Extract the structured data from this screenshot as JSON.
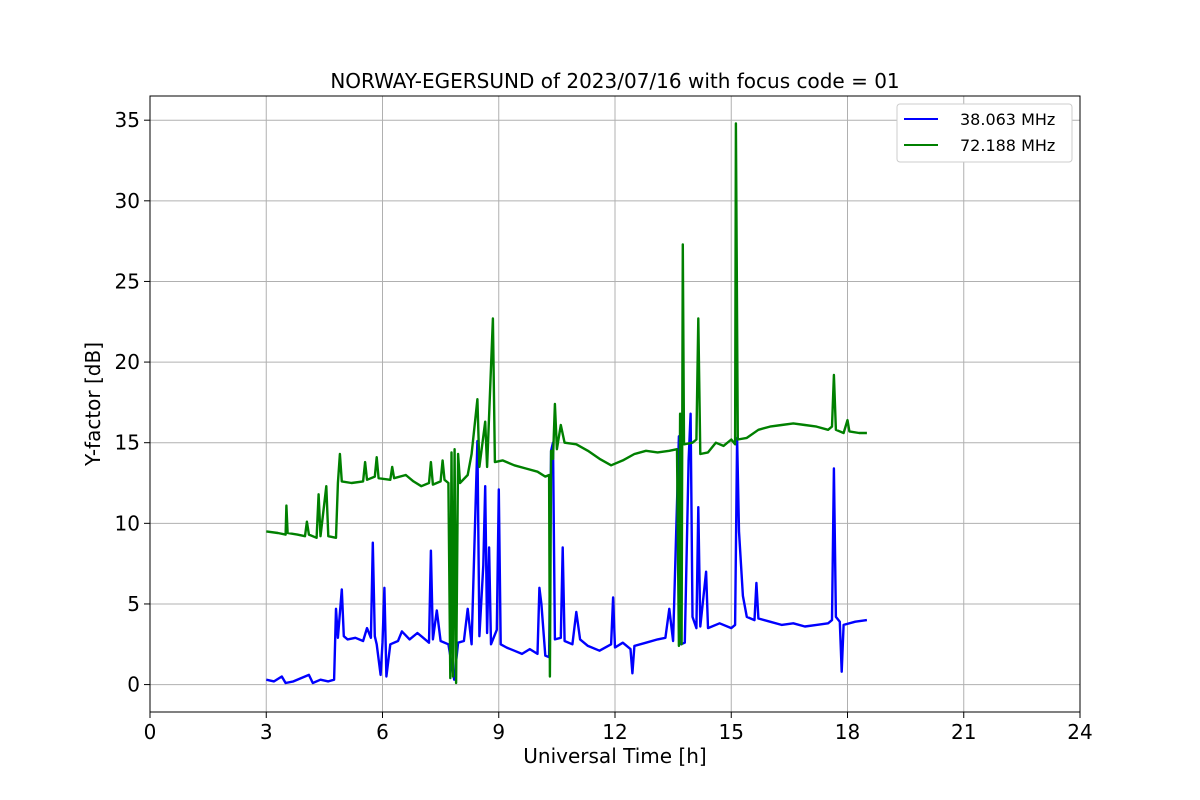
{
  "chart_data": {
    "type": "line",
    "title": "NORWAY-EGERSUND of 2023/07/16 with focus code = 01",
    "xlabel": "Universal Time [h]",
    "ylabel": "Y-factor [dB]",
    "xlim": [
      0,
      24
    ],
    "ylim": [
      -1.7,
      36.5
    ],
    "xticks": [
      0,
      3,
      6,
      9,
      12,
      15,
      18,
      21,
      24
    ],
    "yticks": [
      0,
      5,
      10,
      15,
      20,
      25,
      30,
      35
    ],
    "grid": true,
    "legend_position": "top-right",
    "series": [
      {
        "name": "38.063 MHz",
        "color": "#0000ff",
        "points": [
          [
            3.0,
            0.3
          ],
          [
            3.2,
            0.2
          ],
          [
            3.4,
            0.5
          ],
          [
            3.5,
            0.1
          ],
          [
            3.7,
            0.2
          ],
          [
            3.9,
            0.4
          ],
          [
            4.1,
            0.6
          ],
          [
            4.2,
            0.1
          ],
          [
            4.4,
            0.3
          ],
          [
            4.6,
            0.2
          ],
          [
            4.75,
            0.3
          ],
          [
            4.8,
            4.7
          ],
          [
            4.85,
            2.9
          ],
          [
            4.95,
            5.9
          ],
          [
            5.0,
            3.0
          ],
          [
            5.1,
            2.8
          ],
          [
            5.3,
            2.9
          ],
          [
            5.5,
            2.7
          ],
          [
            5.6,
            3.5
          ],
          [
            5.7,
            2.9
          ],
          [
            5.75,
            8.8
          ],
          [
            5.8,
            3.0
          ],
          [
            5.85,
            2.5
          ],
          [
            5.95,
            0.6
          ],
          [
            6.0,
            2.6
          ],
          [
            6.05,
            6.0
          ],
          [
            6.1,
            0.5
          ],
          [
            6.2,
            2.5
          ],
          [
            6.4,
            2.7
          ],
          [
            6.5,
            3.3
          ],
          [
            6.7,
            2.8
          ],
          [
            6.9,
            3.2
          ],
          [
            7.0,
            3.0
          ],
          [
            7.2,
            2.6
          ],
          [
            7.25,
            8.3
          ],
          [
            7.3,
            2.8
          ],
          [
            7.4,
            4.6
          ],
          [
            7.5,
            2.7
          ],
          [
            7.7,
            2.5
          ],
          [
            7.85,
            0.3
          ],
          [
            7.95,
            2.6
          ],
          [
            8.1,
            2.7
          ],
          [
            8.2,
            4.7
          ],
          [
            8.3,
            2.5
          ],
          [
            8.45,
            15.1
          ],
          [
            8.5,
            3.0
          ],
          [
            8.6,
            7.4
          ],
          [
            8.65,
            12.3
          ],
          [
            8.7,
            3.2
          ],
          [
            8.75,
            8.5
          ],
          [
            8.8,
            2.5
          ],
          [
            8.95,
            3.4
          ],
          [
            9.0,
            12.1
          ],
          [
            9.05,
            2.5
          ],
          [
            9.2,
            2.3
          ],
          [
            9.4,
            2.1
          ],
          [
            9.6,
            1.9
          ],
          [
            9.8,
            2.2
          ],
          [
            10.0,
            1.9
          ],
          [
            10.05,
            6.0
          ],
          [
            10.1,
            5.0
          ],
          [
            10.2,
            1.8
          ],
          [
            10.3,
            1.7
          ],
          [
            10.35,
            14.5
          ],
          [
            10.4,
            15.0
          ],
          [
            10.45,
            2.8
          ],
          [
            10.6,
            2.9
          ],
          [
            10.65,
            8.5
          ],
          [
            10.7,
            2.7
          ],
          [
            10.9,
            2.5
          ],
          [
            11.0,
            4.5
          ],
          [
            11.1,
            2.8
          ],
          [
            11.3,
            2.4
          ],
          [
            11.6,
            2.1
          ],
          [
            11.9,
            2.5
          ],
          [
            11.95,
            5.4
          ],
          [
            12.0,
            2.3
          ],
          [
            12.2,
            2.6
          ],
          [
            12.4,
            2.2
          ],
          [
            12.45,
            0.7
          ],
          [
            12.5,
            2.4
          ],
          [
            12.8,
            2.6
          ],
          [
            13.1,
            2.8
          ],
          [
            13.3,
            2.9
          ],
          [
            13.4,
            4.7
          ],
          [
            13.5,
            2.7
          ],
          [
            13.65,
            15.4
          ],
          [
            13.7,
            2.5
          ],
          [
            13.8,
            2.6
          ],
          [
            13.9,
            13.9
          ],
          [
            13.95,
            16.8
          ],
          [
            14.0,
            4.2
          ],
          [
            14.1,
            3.5
          ],
          [
            14.15,
            11.0
          ],
          [
            14.2,
            3.6
          ],
          [
            14.35,
            7.0
          ],
          [
            14.4,
            3.5
          ],
          [
            14.7,
            3.8
          ],
          [
            15.0,
            3.5
          ],
          [
            15.1,
            3.7
          ],
          [
            15.15,
            15.3
          ],
          [
            15.2,
            9.5
          ],
          [
            15.3,
            5.5
          ],
          [
            15.4,
            4.2
          ],
          [
            15.6,
            4.0
          ],
          [
            15.65,
            6.3
          ],
          [
            15.7,
            4.1
          ],
          [
            16.0,
            3.9
          ],
          [
            16.3,
            3.7
          ],
          [
            16.6,
            3.8
          ],
          [
            16.9,
            3.6
          ],
          [
            17.2,
            3.7
          ],
          [
            17.5,
            3.8
          ],
          [
            17.6,
            4.0
          ],
          [
            17.65,
            13.4
          ],
          [
            17.7,
            4.2
          ],
          [
            17.8,
            3.9
          ],
          [
            17.85,
            0.8
          ],
          [
            17.9,
            3.7
          ],
          [
            18.2,
            3.9
          ],
          [
            18.5,
            4.0
          ]
        ]
      },
      {
        "name": "72.188 MHz",
        "color": "#008000",
        "points": [
          [
            3.0,
            9.5
          ],
          [
            3.3,
            9.4
          ],
          [
            3.5,
            9.3
          ],
          [
            3.52,
            11.1
          ],
          [
            3.55,
            9.4
          ],
          [
            3.8,
            9.3
          ],
          [
            4.0,
            9.2
          ],
          [
            4.05,
            10.1
          ],
          [
            4.1,
            9.3
          ],
          [
            4.3,
            9.1
          ],
          [
            4.35,
            11.8
          ],
          [
            4.4,
            9.2
          ],
          [
            4.55,
            12.3
          ],
          [
            4.6,
            9.2
          ],
          [
            4.8,
            9.1
          ],
          [
            4.85,
            12.5
          ],
          [
            4.9,
            14.3
          ],
          [
            4.95,
            12.6
          ],
          [
            5.2,
            12.5
          ],
          [
            5.5,
            12.6
          ],
          [
            5.55,
            13.8
          ],
          [
            5.6,
            12.7
          ],
          [
            5.8,
            12.9
          ],
          [
            5.85,
            14.1
          ],
          [
            5.9,
            12.8
          ],
          [
            6.2,
            12.7
          ],
          [
            6.25,
            13.5
          ],
          [
            6.3,
            12.8
          ],
          [
            6.6,
            13.0
          ],
          [
            6.8,
            12.6
          ],
          [
            7.0,
            12.3
          ],
          [
            7.2,
            12.5
          ],
          [
            7.25,
            13.8
          ],
          [
            7.3,
            12.4
          ],
          [
            7.5,
            12.6
          ],
          [
            7.55,
            13.9
          ],
          [
            7.6,
            12.7
          ],
          [
            7.7,
            12.5
          ],
          [
            7.75,
            0.4
          ],
          [
            7.78,
            14.4
          ],
          [
            7.82,
            0.5
          ],
          [
            7.86,
            14.6
          ],
          [
            7.9,
            0.1
          ],
          [
            7.95,
            14.3
          ],
          [
            8.0,
            12.5
          ],
          [
            8.2,
            13.0
          ],
          [
            8.3,
            14.3
          ],
          [
            8.45,
            17.7
          ],
          [
            8.5,
            13.5
          ],
          [
            8.65,
            16.3
          ],
          [
            8.7,
            13.5
          ],
          [
            8.85,
            22.7
          ],
          [
            8.9,
            13.8
          ],
          [
            9.1,
            13.9
          ],
          [
            9.4,
            13.6
          ],
          [
            9.7,
            13.4
          ],
          [
            10.0,
            13.2
          ],
          [
            10.2,
            12.9
          ],
          [
            10.3,
            13.0
          ],
          [
            10.32,
            0.5
          ],
          [
            10.35,
            14.5
          ],
          [
            10.4,
            14.0
          ],
          [
            10.45,
            17.4
          ],
          [
            10.5,
            14.6
          ],
          [
            10.6,
            16.1
          ],
          [
            10.7,
            15.0
          ],
          [
            11.0,
            14.9
          ],
          [
            11.3,
            14.5
          ],
          [
            11.6,
            14.0
          ],
          [
            11.9,
            13.6
          ],
          [
            12.2,
            13.9
          ],
          [
            12.5,
            14.3
          ],
          [
            12.8,
            14.5
          ],
          [
            13.1,
            14.4
          ],
          [
            13.4,
            14.5
          ],
          [
            13.6,
            14.6
          ],
          [
            13.65,
            2.4
          ],
          [
            13.68,
            16.8
          ],
          [
            13.72,
            2.5
          ],
          [
            13.75,
            27.3
          ],
          [
            13.78,
            14.9
          ],
          [
            14.0,
            15.0
          ],
          [
            14.1,
            15.2
          ],
          [
            14.15,
            22.7
          ],
          [
            14.2,
            14.3
          ],
          [
            14.4,
            14.4
          ],
          [
            14.6,
            15.0
          ],
          [
            14.8,
            14.8
          ],
          [
            15.0,
            15.2
          ],
          [
            15.1,
            14.9
          ],
          [
            15.12,
            34.8
          ],
          [
            15.17,
            15.2
          ],
          [
            15.4,
            15.3
          ],
          [
            15.7,
            15.8
          ],
          [
            16.0,
            16.0
          ],
          [
            16.3,
            16.1
          ],
          [
            16.6,
            16.2
          ],
          [
            16.9,
            16.1
          ],
          [
            17.2,
            16.0
          ],
          [
            17.5,
            15.8
          ],
          [
            17.6,
            16.0
          ],
          [
            17.65,
            19.2
          ],
          [
            17.7,
            15.8
          ],
          [
            17.9,
            15.6
          ],
          [
            18.0,
            16.4
          ],
          [
            18.05,
            15.7
          ],
          [
            18.3,
            15.6
          ],
          [
            18.5,
            15.6
          ]
        ]
      }
    ]
  }
}
